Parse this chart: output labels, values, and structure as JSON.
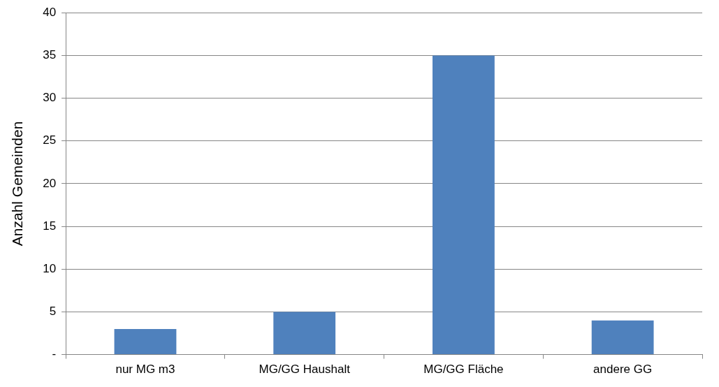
{
  "chart_data": {
    "type": "bar",
    "ylabel": "Anzahl Gemeinden",
    "categories": [
      "nur MG m3",
      "MG/GG Haushalt",
      "MG/GG Fläche",
      "andere GG"
    ],
    "values": [
      3,
      5,
      35,
      4
    ],
    "color": "#4f81bd",
    "ylim": [
      0,
      40
    ],
    "yticks": [
      {
        "value": 0,
        "label": "-"
      },
      5,
      10,
      15,
      20,
      25,
      30,
      35,
      40
    ],
    "grid": "y",
    "legend": false
  }
}
